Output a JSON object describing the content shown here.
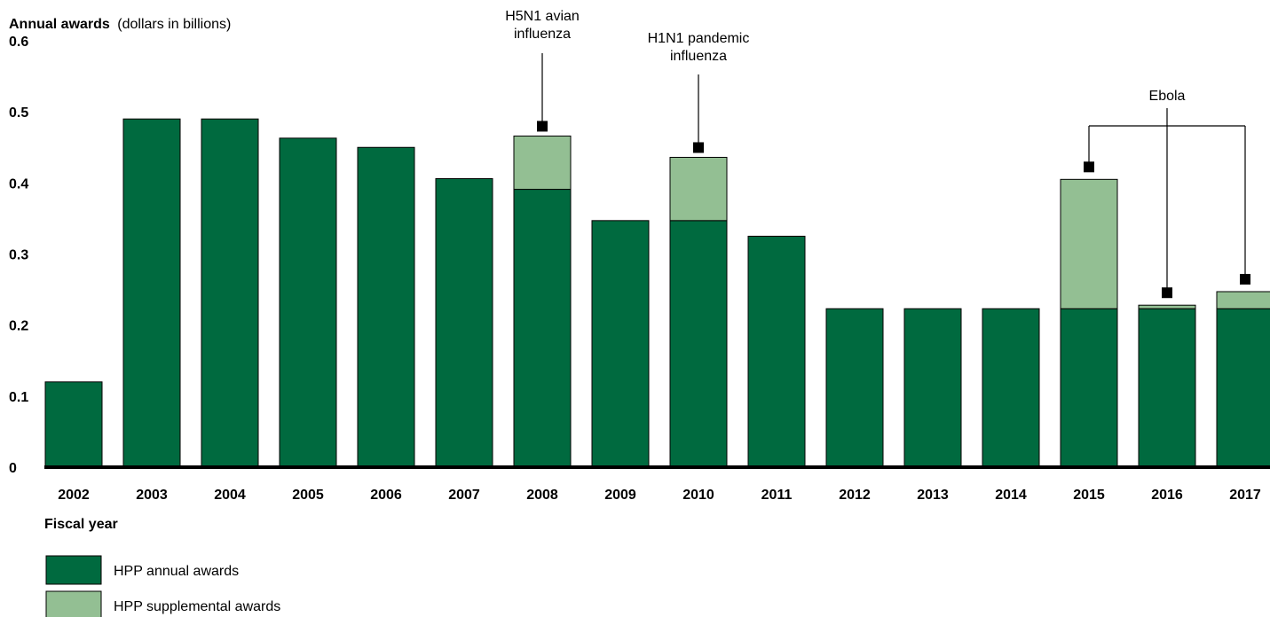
{
  "chart_data": {
    "type": "bar",
    "stacked": true,
    "y_title": "Annual awards",
    "y_title_unit": "(dollars in billions)",
    "xlabel": "Fiscal year",
    "ylim": [
      0,
      0.6
    ],
    "y_ticks": [
      "0",
      "0.1",
      "0.2",
      "0.3",
      "0.4",
      "0.5",
      "0.6"
    ],
    "categories": [
      "2002",
      "2003",
      "2004",
      "2005",
      "2006",
      "2007",
      "2008",
      "2009",
      "2010",
      "2011",
      "2012",
      "2013",
      "2014",
      "2015",
      "2016",
      "2017"
    ],
    "series": [
      {
        "name": "HPP annual awards",
        "color": "#006a3f",
        "values": [
          0.12,
          0.49,
          0.49,
          0.463,
          0.45,
          0.406,
          0.391,
          0.347,
          0.347,
          0.325,
          0.223,
          0.223,
          0.223,
          0.223,
          0.223,
          0.223
        ]
      },
      {
        "name": "HPP supplemental awards",
        "color": "#93bf93",
        "values": [
          0,
          0,
          0,
          0,
          0,
          0,
          0.075,
          0,
          0.089,
          0,
          0,
          0,
          0,
          0.182,
          0.005,
          0.024
        ]
      }
    ],
    "annotations": [
      {
        "lines": [
          "H5N1 avian",
          "influenza"
        ],
        "targets": [
          "2008"
        ]
      },
      {
        "lines": [
          "H1N1 pandemic",
          "influenza"
        ],
        "targets": [
          "2010"
        ]
      },
      {
        "lines": [
          "Ebola"
        ],
        "targets": [
          "2015",
          "2016",
          "2017"
        ]
      }
    ],
    "legend_position": "bottom-left",
    "grid": false
  }
}
